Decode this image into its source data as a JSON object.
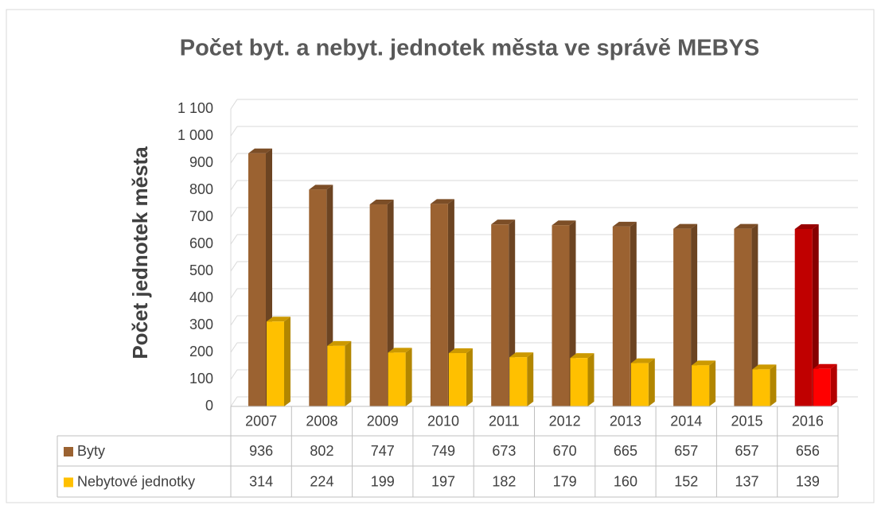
{
  "chart_data": {
    "type": "bar",
    "title": "Počet byt. a nebyt. jednotek města ve správě MEBYS",
    "y_label": "Počet jednotek města",
    "categories": [
      "2007",
      "2008",
      "2009",
      "2010",
      "2011",
      "2012",
      "2013",
      "2014",
      "2015",
      "2016"
    ],
    "series": [
      {
        "name": "Byty",
        "color": "#9b6231",
        "colors": [
          "#9b6231",
          "#9b6231",
          "#9b6231",
          "#9b6231",
          "#9b6231",
          "#9b6231",
          "#9b6231",
          "#9b6231",
          "#9b6231",
          "#c00000"
        ],
        "values": [
          936,
          802,
          747,
          749,
          673,
          670,
          665,
          657,
          657,
          656
        ]
      },
      {
        "name": "Nebytové jednotky",
        "color": "#ffc000",
        "colors": [
          "#ffc000",
          "#ffc000",
          "#ffc000",
          "#ffc000",
          "#ffc000",
          "#ffc000",
          "#ffc000",
          "#ffc000",
          "#ffc000",
          "#ff0000"
        ],
        "values": [
          314,
          224,
          199,
          197,
          182,
          179,
          160,
          152,
          137,
          139
        ]
      }
    ],
    "ylim": [
      0,
      1100
    ],
    "yticks": [
      0,
      100,
      200,
      300,
      400,
      500,
      600,
      700,
      800,
      900,
      {
        "value": 1000,
        "label": "1 000"
      },
      {
        "value": 1100,
        "label": "1 100"
      }
    ],
    "grid": true
  }
}
